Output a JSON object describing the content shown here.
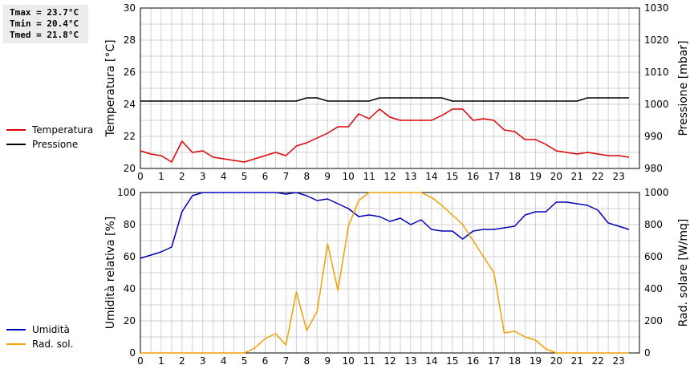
{
  "stats": {
    "tmax": "Tmax = 23.7°C",
    "tmin": "Tmin = 20.4°C",
    "tmed": "Tmed = 21.8°C"
  },
  "colors": {
    "temperature": "#dd0000",
    "pressure": "#000000",
    "humidity": "#0000bb",
    "radiation": "#f0a000",
    "grid": "#d0d0d0"
  },
  "chart_data": [
    {
      "type": "line",
      "x_ticks": [
        "0",
        "1",
        "2",
        "3",
        "4",
        "5",
        "6",
        "7",
        "8",
        "9",
        "10",
        "11",
        "12",
        "13",
        "14",
        "15",
        "16",
        "17",
        "18",
        "19",
        "20",
        "21",
        "22",
        "23"
      ],
      "xlim": [
        0,
        24
      ],
      "ylabel": "Temperatura [°C]",
      "ylim": [
        20,
        30
      ],
      "y_ticks": [
        "20",
        "22",
        "24",
        "26",
        "28",
        "30"
      ],
      "y2label": "Pressione [mbar]",
      "y2lim": [
        980,
        1030
      ],
      "y2_ticks": [
        "980",
        "990",
        "1000",
        "1010",
        "1020",
        "1030"
      ],
      "legend": [
        "Temperatura",
        "Pressione"
      ],
      "series": [
        {
          "name": "Temperatura",
          "axis": "left",
          "x": [
            0,
            0.5,
            1,
            1.5,
            2,
            2.5,
            3,
            3.5,
            4,
            4.5,
            5,
            5.5,
            6,
            6.5,
            7,
            7.5,
            8,
            8.5,
            9,
            9.5,
            10,
            10.5,
            11,
            11.5,
            12,
            12.5,
            13,
            13.5,
            14,
            14.5,
            15,
            15.5,
            16,
            16.5,
            17,
            17.5,
            18,
            18.5,
            19,
            19.5,
            20,
            20.5,
            21,
            21.5,
            22,
            22.5,
            23,
            23.5
          ],
          "values": [
            21.1,
            20.9,
            20.8,
            20.4,
            21.7,
            21.0,
            21.1,
            20.7,
            20.6,
            20.5,
            20.4,
            20.6,
            20.8,
            21.0,
            20.8,
            21.4,
            21.6,
            21.9,
            22.2,
            22.6,
            22.6,
            23.4,
            23.1,
            23.7,
            23.2,
            23.0,
            23.0,
            23.0,
            23.0,
            23.3,
            23.7,
            23.7,
            23.0,
            23.1,
            23.0,
            22.4,
            22.3,
            21.8,
            21.8,
            21.5,
            21.1,
            21.0,
            20.9,
            21.0,
            20.9,
            20.8,
            20.8,
            20.7
          ]
        },
        {
          "name": "Pressione",
          "axis": "right",
          "x": [
            0,
            7.5,
            8,
            8.5,
            9,
            9.5,
            10,
            10.5,
            11,
            11.5,
            12,
            12.5,
            13,
            13.5,
            14,
            14.5,
            15,
            15.5,
            16,
            20.5,
            21,
            21.5,
            22,
            23.5
          ],
          "values": [
            1001,
            1001,
            1002,
            1002,
            1001,
            1001,
            1001,
            1001,
            1001,
            1002,
            1002,
            1002,
            1002,
            1002,
            1002,
            1002,
            1001,
            1001,
            1001,
            1001,
            1001,
            1002,
            1002,
            1002
          ]
        }
      ]
    },
    {
      "type": "line",
      "x_ticks": [
        "0",
        "1",
        "2",
        "3",
        "4",
        "5",
        "6",
        "7",
        "8",
        "9",
        "10",
        "11",
        "12",
        "13",
        "14",
        "15",
        "16",
        "17",
        "18",
        "19",
        "20",
        "21",
        "22",
        "23"
      ],
      "xlim": [
        0,
        24
      ],
      "ylabel": "Umidità relativa [%]",
      "ylim": [
        0,
        100
      ],
      "y_ticks": [
        "0",
        "20",
        "40",
        "60",
        "80",
        "100"
      ],
      "y2label": "Rad. solare [W/mq]",
      "y2lim": [
        0,
        1000
      ],
      "y2_ticks": [
        "0",
        "200",
        "400",
        "600",
        "800",
        "1000"
      ],
      "legend": [
        "Umidità",
        "Rad. sol."
      ],
      "series": [
        {
          "name": "Umidità",
          "axis": "left",
          "x": [
            0,
            0.5,
            1,
            1.5,
            2,
            2.5,
            3,
            3.5,
            4,
            4.5,
            5,
            5.5,
            6,
            6.5,
            7,
            7.5,
            8,
            8.5,
            9,
            9.5,
            10,
            10.5,
            11,
            11.5,
            12,
            12.5,
            13,
            13.5,
            14,
            14.5,
            15,
            15.5,
            16,
            16.5,
            17,
            17.5,
            18,
            18.5,
            19,
            19.5,
            20,
            20.5,
            21,
            21.5,
            22,
            22.5,
            23,
            23.5
          ],
          "values": [
            59,
            61,
            63,
            66,
            88,
            98,
            100,
            100,
            100,
            100,
            100,
            100,
            100,
            100,
            99,
            100,
            98,
            95,
            96,
            93,
            90,
            85,
            86,
            85,
            82,
            84,
            80,
            83,
            77,
            76,
            76,
            71,
            76,
            77,
            77,
            78,
            79,
            86,
            88,
            88,
            94,
            94,
            93,
            92,
            89,
            81,
            79,
            77
          ]
        },
        {
          "name": "Rad. sol.",
          "axis": "right",
          "x": [
            0,
            0.5,
            1,
            1.5,
            2,
            2.5,
            3,
            3.5,
            4,
            4.5,
            5,
            5.5,
            6,
            6.5,
            7,
            7.5,
            8,
            8.5,
            9,
            9.5,
            10,
            10.5,
            11,
            11.5,
            12,
            12.5,
            13,
            13.5,
            14,
            14.5,
            15,
            15.5,
            16,
            16.5,
            17,
            17.5,
            18,
            18.5,
            19,
            19.5,
            20,
            20.5,
            21,
            21.5,
            22,
            22.5,
            23,
            23.5
          ],
          "values": [
            0,
            0,
            0,
            0,
            0,
            0,
            0,
            0,
            0,
            0,
            0,
            30,
            90,
            120,
            50,
            380,
            140,
            260,
            680,
            390,
            790,
            950,
            1000,
            1000,
            1000,
            1000,
            1000,
            1000,
            970,
            920,
            860,
            800,
            700,
            600,
            500,
            125,
            135,
            100,
            80,
            25,
            0,
            0,
            0,
            0,
            0,
            0,
            0,
            0
          ]
        }
      ]
    }
  ]
}
